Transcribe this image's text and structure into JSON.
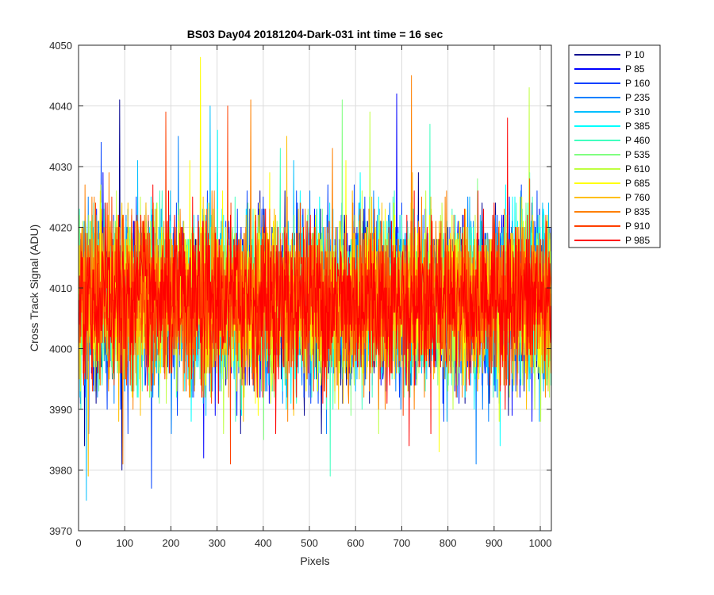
{
  "chart_data": {
    "type": "line",
    "title": "BS03 Day04 20181204-Dark-031 int time = 16 sec",
    "xlabel": "Pixels",
    "ylabel": "Cross Track Signal (ADU)",
    "xlim": [
      0,
      1024
    ],
    "ylim": [
      3970,
      4050
    ],
    "xticks": [
      0,
      100,
      200,
      300,
      400,
      500,
      600,
      700,
      800,
      900,
      1000
    ],
    "yticks": [
      3970,
      3980,
      3990,
      4000,
      4010,
      4020,
      4030,
      4040,
      4050
    ],
    "grid": true,
    "legend_position": "outside-top-right",
    "series": [
      {
        "name": "P 10",
        "color": "#00008f",
        "spikes": [
          [
            88,
            4041
          ],
          [
            93,
            3980
          ],
          [
            12,
            3984
          ]
        ]
      },
      {
        "name": "P 85",
        "color": "#0000ff",
        "spikes": [
          [
            688,
            4042
          ],
          [
            270,
            3982
          ]
        ]
      },
      {
        "name": "P 160",
        "color": "#0040ff",
        "spikes": [
          [
            157,
            3977
          ],
          [
            48,
            4034
          ]
        ]
      },
      {
        "name": "P 235",
        "color": "#0080ff",
        "spikes": [
          [
            215,
            4035
          ],
          [
            860,
            3981
          ]
        ]
      },
      {
        "name": "P 310",
        "color": "#00bfff",
        "spikes": [
          [
            16,
            3975
          ],
          [
            284,
            4040
          ]
        ]
      },
      {
        "name": "P 385",
        "color": "#00ffff",
        "spikes": [
          [
            300,
            4036
          ],
          [
            912,
            3984
          ]
        ]
      },
      {
        "name": "P 460",
        "color": "#40ffbf",
        "spikes": [
          [
            544,
            3979
          ],
          [
            760,
            4037
          ]
        ]
      },
      {
        "name": "P 535",
        "color": "#80ff80",
        "spikes": [
          [
            570,
            4041
          ],
          [
            400,
            3985
          ]
        ]
      },
      {
        "name": "P 610",
        "color": "#bfff40",
        "spikes": [
          [
            975,
            4043
          ],
          [
            630,
            4039
          ]
        ]
      },
      {
        "name": "P 685",
        "color": "#ffff00",
        "spikes": [
          [
            263,
            4048
          ],
          [
            780,
            3983
          ]
        ]
      },
      {
        "name": "P 760",
        "color": "#ffbf00",
        "spikes": [
          [
            20,
            3979
          ],
          [
            450,
            4035
          ]
        ]
      },
      {
        "name": "P 835",
        "color": "#ff8000",
        "spikes": [
          [
            720,
            4045
          ],
          [
            95,
            3981
          ],
          [
            372,
            4041
          ]
        ]
      },
      {
        "name": "P 910",
        "color": "#ff4000",
        "spikes": [
          [
            188,
            4039
          ],
          [
            328,
            3981
          ],
          [
            322,
            4040
          ]
        ]
      },
      {
        "name": "P 985",
        "color": "#ff0000",
        "spikes": [
          [
            928,
            4038
          ],
          [
            715,
            3984
          ]
        ]
      }
    ],
    "noise": {
      "mean": 4008,
      "sd": 6.5,
      "min": 3986,
      "max": 4033,
      "points_per_series": 1024
    }
  }
}
